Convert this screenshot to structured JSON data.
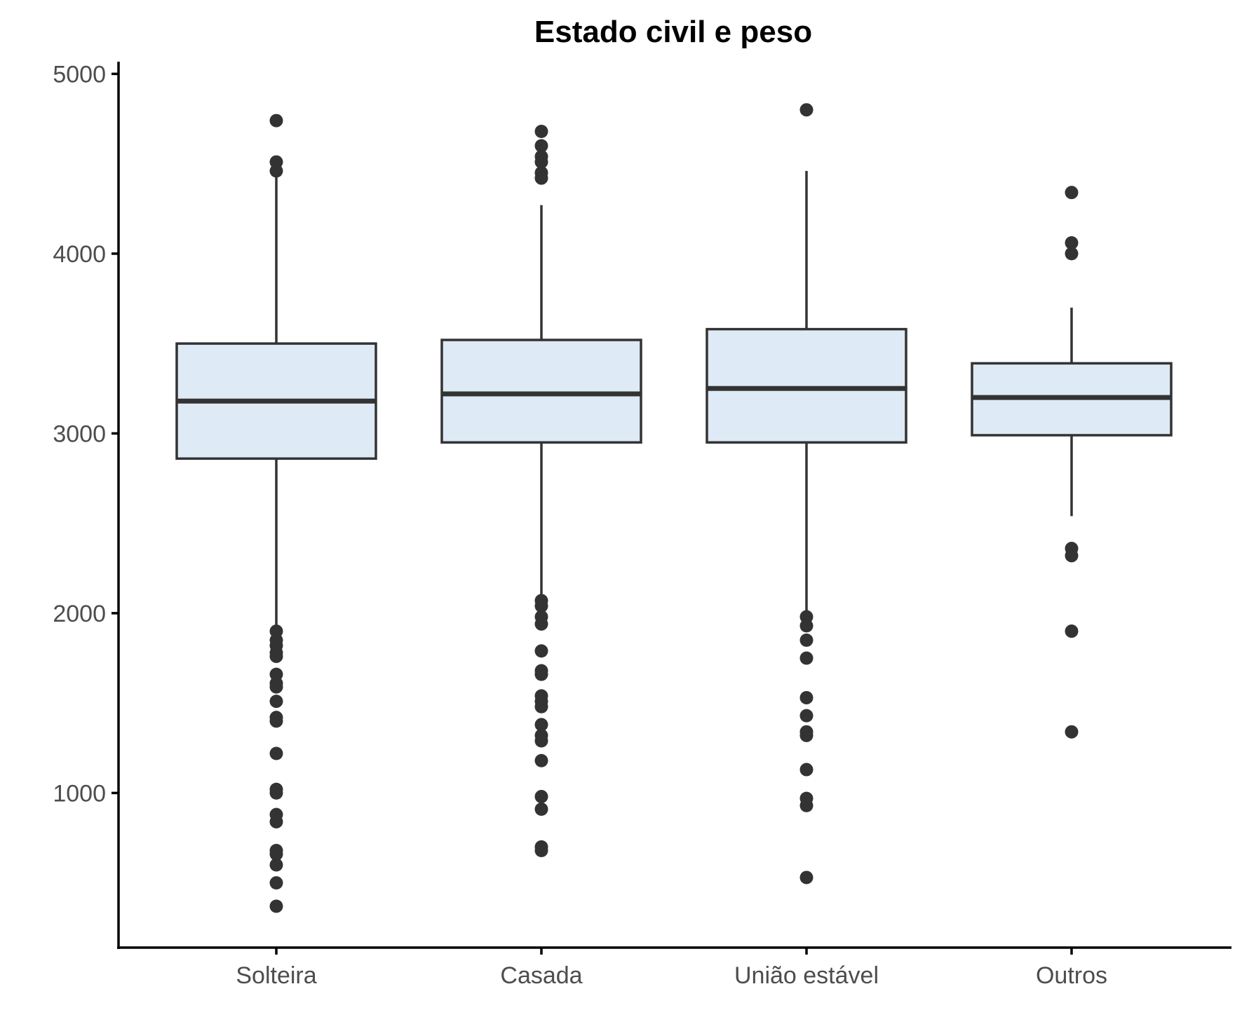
{
  "chart_data": {
    "type": "boxplot",
    "title": "Estado civil e peso",
    "xlabel": "",
    "ylabel": "",
    "ylim": [
      140,
      5060
    ],
    "yticks": [
      1000,
      2000,
      3000,
      4000,
      5000
    ],
    "grid": false,
    "legend": "none",
    "colors": {
      "box_fill": "#deeaf5",
      "stroke": "#333333",
      "axis": "#000000"
    },
    "categories": [
      "Solteira",
      "Casada",
      "União estável",
      "Outros"
    ],
    "boxes": [
      {
        "category": "Solteira",
        "q1": 2860,
        "median": 3180,
        "q3": 3500,
        "whisker_low": 1900,
        "whisker_high": 4460,
        "outliers": [
          4740,
          4510,
          4460,
          1900,
          1850,
          1820,
          1780,
          1760,
          1660,
          1610,
          1590,
          1510,
          1420,
          1400,
          1220,
          1020,
          1000,
          880,
          840,
          680,
          660,
          600,
          500,
          370
        ]
      },
      {
        "category": "Casada",
        "q1": 2950,
        "median": 3220,
        "q3": 3520,
        "whisker_low": 2070,
        "whisker_high": 4270,
        "outliers": [
          4680,
          4600,
          4540,
          4510,
          4450,
          4420,
          2070,
          2040,
          1980,
          1940,
          1790,
          1680,
          1660,
          1540,
          1510,
          1480,
          1380,
          1320,
          1290,
          1180,
          980,
          910,
          700,
          680
        ]
      },
      {
        "category": "União estável",
        "q1": 2950,
        "median": 3250,
        "q3": 3580,
        "whisker_low": 1990,
        "whisker_high": 4460,
        "outliers": [
          4800,
          1980,
          1930,
          1850,
          1750,
          1530,
          1430,
          1340,
          1320,
          1130,
          970,
          930,
          530
        ]
      },
      {
        "category": "Outros",
        "q1": 2990,
        "median": 3200,
        "q3": 3390,
        "whisker_low": 2540,
        "whisker_high": 3700,
        "outliers": [
          4340,
          4060,
          4000,
          2360,
          2320,
          1900,
          1340
        ]
      }
    ]
  }
}
